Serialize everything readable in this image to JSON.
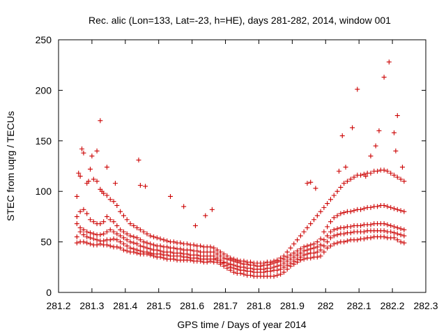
{
  "chart_data": {
    "type": "scatter",
    "title": "Rec. alic (Lon=133, Lat=-23, h=HE), days 281-282, 2014, window 001",
    "xlabel": "GPS time / Days of year 2014",
    "ylabel": "STEC from uqrg / TECUs",
    "xlim": [
      281.2,
      282.3
    ],
    "ylim": [
      0,
      250
    ],
    "x_ticks": [
      "281.2",
      "281.3",
      "281.4",
      "281.5",
      "281.6",
      "281.7",
      "281.8",
      "281.9",
      "282",
      "282.1",
      "282.2",
      "282.3"
    ],
    "y_ticks": [
      "0",
      "50",
      "100",
      "150",
      "200",
      "250"
    ],
    "grid": false,
    "legend": "none",
    "marker": "plus",
    "color": "#cc0000",
    "series": [
      {
        "x": [
          281.255,
          281.265,
          281.275,
          281.285,
          281.295,
          281.305,
          281.315,
          281.325,
          281.335,
          281.345,
          281.355,
          281.365,
          281.375,
          281.385,
          281.395,
          281.405,
          281.415,
          281.425,
          281.435,
          281.445,
          281.455,
          281.465,
          281.475,
          281.485,
          281.495,
          281.505,
          281.515,
          281.525,
          281.535,
          281.545,
          281.555,
          281.565,
          281.575,
          281.585,
          281.595,
          281.605,
          281.615,
          281.625,
          281.635,
          281.645,
          281.655,
          281.665,
          281.675,
          281.685,
          281.695,
          281.705,
          281.715,
          281.725,
          281.735,
          281.745,
          281.755,
          281.765,
          281.775,
          281.785,
          281.795,
          281.805,
          281.815,
          281.825,
          281.835,
          281.845,
          281.855,
          281.865,
          281.875,
          281.885,
          281.895,
          281.905,
          281.915,
          281.925,
          281.935,
          281.945,
          281.955,
          281.965,
          281.975,
          281.985,
          281.995,
          282.005,
          282.015,
          282.025,
          282.035,
          282.045,
          282.055,
          282.065,
          282.075,
          282.085,
          282.095,
          282.105,
          282.115,
          282.125,
          282.135,
          282.145,
          282.155,
          282.165,
          282.175,
          282.185,
          282.195,
          282.205,
          282.215,
          282.225,
          282.235
        ],
        "y": [
          49,
          50,
          50,
          49,
          48,
          47,
          47,
          48,
          47,
          47,
          46,
          45,
          45,
          44,
          42,
          41,
          40,
          40,
          39,
          38,
          38,
          38,
          37,
          36,
          35,
          35,
          34,
          33,
          33,
          33,
          32,
          32,
          32,
          32,
          32,
          31,
          31,
          31,
          30,
          30,
          31,
          30,
          30,
          28,
          26,
          24,
          22,
          20,
          19,
          19,
          18,
          17,
          17,
          16,
          16,
          16,
          16,
          16,
          16,
          16,
          17,
          18,
          20,
          23,
          26,
          28,
          30,
          32,
          33,
          34,
          34,
          35,
          35,
          36,
          40,
          44,
          46,
          48,
          49,
          50,
          50,
          51,
          52,
          52,
          52,
          53,
          53,
          54,
          54,
          55,
          55,
          55,
          55,
          54,
          54,
          54,
          52,
          50,
          49
        ]
      },
      {
        "x": [
          281.255,
          281.265,
          281.275,
          281.285,
          281.295,
          281.305,
          281.315,
          281.325,
          281.335,
          281.345,
          281.355,
          281.365,
          281.375,
          281.385,
          281.395,
          281.405,
          281.415,
          281.425,
          281.435,
          281.445,
          281.455,
          281.465,
          281.475,
          281.485,
          281.495,
          281.505,
          281.515,
          281.525,
          281.535,
          281.545,
          281.555,
          281.565,
          281.575,
          281.585,
          281.595,
          281.605,
          281.615,
          281.625,
          281.635,
          281.645,
          281.655,
          281.665,
          281.675,
          281.685,
          281.695,
          281.705,
          281.715,
          281.725,
          281.735,
          281.745,
          281.755,
          281.765,
          281.775,
          281.785,
          281.795,
          281.805,
          281.815,
          281.825,
          281.835,
          281.845,
          281.855,
          281.865,
          281.875,
          281.885,
          281.895,
          281.905,
          281.915,
          281.925,
          281.935,
          281.945,
          281.955,
          281.965,
          281.975,
          281.985,
          281.995,
          282.005,
          282.015,
          282.025,
          282.035,
          282.045,
          282.055,
          282.065,
          282.075,
          282.085,
          282.095,
          282.105,
          282.115,
          282.125,
          282.135,
          282.145,
          282.155,
          282.165,
          282.175,
          282.185,
          282.195,
          282.205,
          282.215,
          282.225,
          282.235
        ],
        "y": [
          55,
          60,
          57,
          55,
          54,
          53,
          52,
          51,
          51,
          52,
          52,
          53,
          52,
          50,
          48,
          46,
          44,
          43,
          42,
          41,
          40,
          40,
          39,
          38,
          38,
          38,
          37,
          37,
          36,
          36,
          36,
          36,
          35,
          35,
          34,
          34,
          34,
          33,
          33,
          33,
          33,
          33,
          32,
          30,
          29,
          27,
          25,
          24,
          23,
          22,
          22,
          21,
          21,
          20,
          20,
          20,
          20,
          21,
          21,
          22,
          22,
          23,
          25,
          27,
          29,
          31,
          33,
          35,
          37,
          38,
          39,
          39,
          40,
          42,
          46,
          50,
          54,
          56,
          57,
          58,
          58,
          59,
          59,
          60,
          60,
          60,
          60,
          61,
          61,
          61,
          61,
          61,
          61,
          60,
          60,
          59,
          58,
          57,
          56
        ]
      },
      {
        "x": [
          281.255,
          281.265,
          281.275,
          281.285,
          281.295,
          281.305,
          281.315,
          281.325,
          281.335,
          281.345,
          281.355,
          281.365,
          281.375,
          281.385,
          281.395,
          281.405,
          281.415,
          281.425,
          281.435,
          281.445,
          281.455,
          281.465,
          281.475,
          281.485,
          281.495,
          281.505,
          281.515,
          281.525,
          281.535,
          281.545,
          281.555,
          281.565,
          281.575,
          281.585,
          281.595,
          281.605,
          281.615,
          281.625,
          281.635,
          281.645,
          281.655,
          281.665,
          281.675,
          281.685,
          281.695,
          281.705,
          281.715,
          281.725,
          281.735,
          281.745,
          281.755,
          281.765,
          281.775,
          281.785,
          281.795,
          281.805,
          281.815,
          281.825,
          281.835,
          281.845,
          281.855,
          281.865,
          281.875,
          281.885,
          281.895,
          281.905,
          281.915,
          281.925,
          281.935,
          281.945,
          281.955,
          281.965,
          281.975,
          281.985,
          281.995,
          282.005,
          282.015,
          282.025,
          282.035,
          282.045,
          282.055,
          282.065,
          282.075,
          282.085,
          282.095,
          282.105,
          282.115,
          282.125,
          282.135,
          282.145,
          282.155,
          282.165,
          282.175,
          282.185,
          282.195,
          282.205,
          282.215,
          282.225,
          282.235
        ],
        "y": [
          68,
          64,
          62,
          60,
          59,
          58,
          57,
          57,
          58,
          60,
          62,
          60,
          58,
          56,
          54,
          52,
          50,
          49,
          48,
          46,
          45,
          44,
          43,
          42,
          42,
          41,
          40,
          40,
          40,
          39,
          39,
          39,
          38,
          38,
          37,
          37,
          37,
          36,
          36,
          36,
          36,
          36,
          34,
          32,
          30,
          29,
          28,
          27,
          26,
          25,
          25,
          24,
          24,
          23,
          23,
          23,
          23,
          24,
          24,
          25,
          26,
          27,
          29,
          31,
          33,
          35,
          37,
          39,
          41,
          42,
          43,
          44,
          45,
          47,
          52,
          56,
          60,
          62,
          63,
          64,
          64,
          65,
          65,
          66,
          66,
          66,
          67,
          67,
          67,
          68,
          68,
          68,
          68,
          67,
          66,
          65,
          64,
          63,
          62
        ]
      },
      {
        "x": [
          281.255,
          281.265,
          281.275,
          281.285,
          281.295,
          281.305,
          281.315,
          281.325,
          281.335,
          281.345,
          281.355,
          281.365,
          281.375,
          281.385,
          281.395,
          281.405,
          281.415,
          281.425,
          281.435,
          281.445,
          281.455,
          281.465,
          281.475,
          281.485,
          281.495,
          281.505,
          281.515,
          281.525,
          281.535,
          281.545,
          281.555,
          281.565,
          281.575,
          281.585,
          281.595,
          281.605,
          281.615,
          281.625,
          281.635,
          281.645,
          281.655,
          281.665,
          281.675,
          281.685,
          281.695,
          281.705,
          281.715,
          281.725,
          281.735,
          281.745,
          281.755,
          281.765,
          281.775,
          281.785,
          281.795,
          281.805,
          281.815,
          281.825,
          281.835,
          281.845,
          281.855,
          281.865,
          281.875,
          281.885,
          281.895,
          281.905,
          281.915,
          281.925,
          281.935,
          281.945,
          281.955,
          281.965,
          281.975,
          281.985,
          281.995,
          282.005,
          282.015,
          282.025,
          282.035,
          282.045,
          282.055,
          282.065,
          282.075,
          282.085,
          282.095,
          282.105,
          282.115,
          282.125,
          282.135,
          282.145,
          282.155,
          282.165,
          282.175,
          282.185,
          282.195,
          282.205,
          282.215,
          282.225,
          282.235
        ],
        "y": [
          75,
          80,
          82,
          78,
          72,
          70,
          68,
          68,
          70,
          75,
          72,
          70,
          66,
          62,
          60,
          58,
          56,
          55,
          54,
          52,
          50,
          49,
          48,
          47,
          46,
          46,
          45,
          45,
          44,
          44,
          43,
          43,
          42,
          42,
          42,
          41,
          41,
          40,
          40,
          40,
          40,
          40,
          38,
          36,
          34,
          33,
          32,
          31,
          30,
          29,
          28,
          28,
          27,
          27,
          26,
          26,
          27,
          27,
          28,
          29,
          30,
          31,
          33,
          35,
          37,
          39,
          41,
          43,
          45,
          46,
          47,
          48,
          50,
          53,
          60,
          65,
          70,
          74,
          76,
          78,
          79,
          80,
          80,
          81,
          82,
          82,
          83,
          84,
          84,
          85,
          85,
          86,
          86,
          85,
          84,
          83,
          82,
          81,
          80
        ]
      },
      {
        "x": [
          281.255,
          281.265,
          281.275,
          281.285,
          281.295,
          281.305,
          281.315,
          281.325,
          281.335,
          281.345,
          281.355,
          281.365,
          281.375,
          281.385,
          281.395,
          281.405,
          281.415,
          281.425,
          281.435,
          281.445,
          281.455,
          281.465,
          281.475,
          281.485,
          281.495,
          281.505,
          281.515,
          281.525,
          281.535,
          281.545,
          281.555,
          281.565,
          281.575,
          281.585,
          281.595,
          281.605,
          281.615,
          281.625,
          281.635,
          281.645,
          281.655,
          281.665,
          281.675,
          281.685,
          281.695,
          281.705,
          281.715,
          281.725,
          281.735,
          281.745,
          281.755,
          281.765,
          281.775,
          281.785,
          281.795,
          281.805,
          281.815,
          281.825,
          281.835,
          281.845,
          281.855,
          281.865,
          281.875,
          281.885,
          281.895,
          281.905,
          281.915,
          281.925,
          281.935,
          281.945,
          281.955,
          281.965,
          281.975,
          281.985,
          281.995,
          282.005,
          282.015,
          282.025,
          282.035,
          282.045,
          282.055,
          282.065,
          282.075,
          282.085,
          282.095,
          282.105,
          282.115,
          282.125,
          282.135,
          282.145,
          282.155,
          282.165,
          282.175,
          282.185,
          282.195,
          282.205,
          282.215,
          282.225,
          282.235
        ],
        "y": [
          95,
          115,
          138,
          108,
          122,
          112,
          110,
          102,
          98,
          96,
          92,
          90,
          86,
          80,
          76,
          72,
          68,
          66,
          64,
          62,
          60,
          58,
          56,
          55,
          54,
          53,
          52,
          51,
          50,
          50,
          49,
          49,
          48,
          48,
          47,
          47,
          46,
          46,
          45,
          45,
          45,
          44,
          42,
          40,
          38,
          36,
          34,
          33,
          32,
          31,
          31,
          30,
          30,
          29,
          29,
          29,
          29,
          30,
          30,
          31,
          32,
          34,
          36,
          40,
          44,
          48,
          52,
          56,
          60,
          64,
          68,
          72,
          76,
          80,
          84,
          88,
          92,
          96,
          100,
          104,
          108,
          110,
          112,
          114,
          116,
          116,
          117,
          118,
          118,
          120,
          120,
          121,
          121,
          120,
          118,
          116,
          114,
          112,
          110
        ]
      },
      {
        "x": [
          281.26,
          281.27,
          281.29,
          281.3,
          281.315,
          281.325,
          281.33,
          281.345,
          281.37,
          281.44,
          281.445,
          281.46,
          281.535,
          281.575,
          281.61,
          281.64,
          281.66,
          281.945,
          281.955,
          281.97,
          282.04,
          282.05,
          282.06,
          282.08,
          282.095,
          282.12,
          282.135,
          282.15,
          282.16,
          282.175,
          282.19,
          282.205,
          282.21,
          282.215,
          282.23
        ],
        "y": [
          118,
          142,
          110,
          135,
          140,
          170,
          100,
          124,
          108,
          131,
          106,
          105,
          95,
          85,
          66,
          76,
          82,
          108,
          109,
          103,
          120,
          155,
          124,
          163,
          201,
          115,
          135,
          145,
          160,
          213,
          228,
          158,
          140,
          175,
          124
        ]
      }
    ]
  }
}
